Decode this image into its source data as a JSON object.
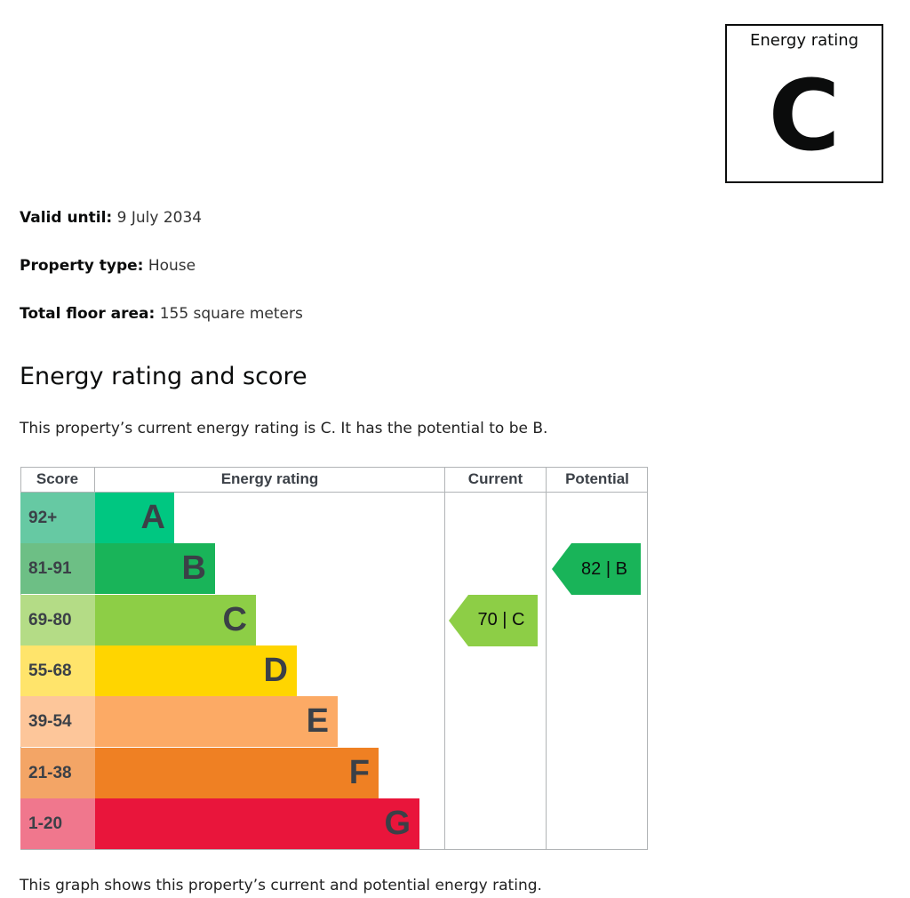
{
  "rating_box": {
    "label": "Energy rating",
    "letter": "C"
  },
  "details": [
    {
      "label": "Valid until:",
      "value": "9 July 2034"
    },
    {
      "label": "Property type:",
      "value": "House"
    },
    {
      "label": "Total floor area:",
      "value": "155 square meters"
    }
  ],
  "section": {
    "title": "Energy rating and score",
    "intro": "This property’s current energy rating is C. It has the potential to be B.",
    "caption": "This graph shows this property’s current and potential energy rating."
  },
  "table": {
    "headers": {
      "score": "Score",
      "rating": "Energy rating",
      "current": "Current",
      "potential": "Potential"
    },
    "bands": [
      {
        "score": "92+",
        "letter": "A",
        "color": "#00c781",
        "score_bg": "#66c9a3"
      },
      {
        "score": "81-91",
        "letter": "B",
        "color": "#19b459",
        "score_bg": "#6dbf85"
      },
      {
        "score": "69-80",
        "letter": "C",
        "color": "#8dce46",
        "score_bg": "#b4dc86"
      },
      {
        "score": "55-68",
        "letter": "D",
        "color": "#ffd500",
        "score_bg": "#ffe46b"
      },
      {
        "score": "39-54",
        "letter": "E",
        "color": "#fcaa65",
        "score_bg": "#fdc69a"
      },
      {
        "score": "21-38",
        "letter": "F",
        "color": "#ef8023",
        "score_bg": "#f3a566"
      },
      {
        "score": "1-20",
        "letter": "G",
        "color": "#e9153b",
        "score_bg": "#f0778d"
      }
    ],
    "current": {
      "text": "70 | C",
      "band_index": 2,
      "color": "#8dce46"
    },
    "potential": {
      "text": "82 | B",
      "band_index": 1,
      "color": "#19b459"
    }
  }
}
